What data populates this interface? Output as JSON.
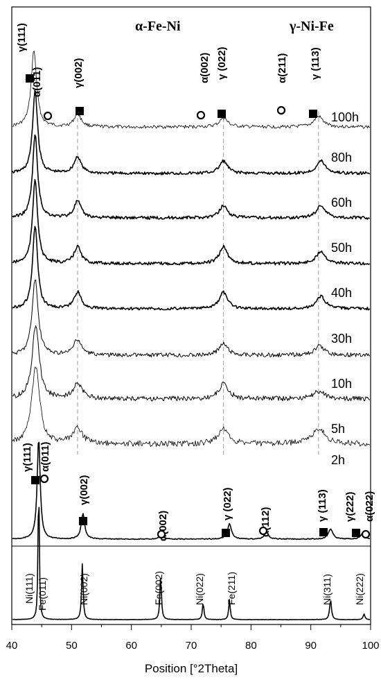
{
  "chart_data": {
    "type": "line",
    "xlabel": "Position [°2Theta]",
    "xlim": [
      40,
      100
    ],
    "xticks": [
      40,
      50,
      60,
      70,
      80,
      90,
      100
    ],
    "legend": [
      "α-Fe-Ni",
      "γ-Ni-Fe"
    ],
    "legend_markers": [
      "circle",
      "square"
    ],
    "series": [
      {
        "name": "100h",
        "peaks": [
          {
            "x": 43.7,
            "h": 1.0,
            "w": 0.55
          },
          {
            "x": 51.0,
            "h": 0.17,
            "w": 0.7
          },
          {
            "x": 75.4,
            "h": 0.12,
            "w": 0.8
          },
          {
            "x": 91.3,
            "h": 0.14,
            "w": 0.9
          }
        ]
      },
      {
        "name": "80h",
        "peaks": [
          {
            "x": 43.9,
            "h": 1.0,
            "w": 0.5
          },
          {
            "x": 51.0,
            "h": 0.2,
            "w": 0.7
          },
          {
            "x": 75.4,
            "h": 0.15,
            "w": 0.8
          },
          {
            "x": 91.7,
            "h": 0.15,
            "w": 0.9
          }
        ]
      },
      {
        "name": "60h",
        "peaks": [
          {
            "x": 43.9,
            "h": 1.0,
            "w": 0.5
          },
          {
            "x": 51.0,
            "h": 0.2,
            "w": 0.7
          },
          {
            "x": 75.4,
            "h": 0.15,
            "w": 0.8
          },
          {
            "x": 91.7,
            "h": 0.15,
            "w": 0.9
          }
        ]
      },
      {
        "name": "50h",
        "peaks": [
          {
            "x": 43.9,
            "h": 1.0,
            "w": 0.5
          },
          {
            "x": 51.0,
            "h": 0.2,
            "w": 0.7
          },
          {
            "x": 75.4,
            "h": 0.2,
            "w": 0.8
          },
          {
            "x": 91.7,
            "h": 0.15,
            "w": 0.9
          }
        ]
      },
      {
        "name": "40h",
        "peaks": [
          {
            "x": 43.9,
            "h": 1.0,
            "w": 0.5
          },
          {
            "x": 51.0,
            "h": 0.2,
            "w": 0.7
          },
          {
            "x": 75.4,
            "h": 0.2,
            "w": 0.8
          },
          {
            "x": 91.7,
            "h": 0.15,
            "w": 0.9
          }
        ]
      },
      {
        "name": "30h",
        "peaks": [
          {
            "x": 43.9,
            "h": 1.0,
            "w": 0.6
          },
          {
            "x": 51.0,
            "h": 0.2,
            "w": 0.8
          },
          {
            "x": 75.4,
            "h": 0.15,
            "w": 0.9
          },
          {
            "x": 91.5,
            "h": 0.12,
            "w": 1.0
          }
        ]
      },
      {
        "name": "10h",
        "peaks": [
          {
            "x": 44.0,
            "h": 1.0,
            "w": 0.7
          },
          {
            "x": 51.0,
            "h": 0.2,
            "w": 0.9
          },
          {
            "x": 75.4,
            "h": 0.2,
            "w": 1.0
          },
          {
            "x": 91.3,
            "h": 0.1,
            "w": 1.2
          }
        ]
      },
      {
        "name": "5h",
        "peaks": [
          {
            "x": 44.0,
            "h": 1.0,
            "w": 0.8
          },
          {
            "x": 51.0,
            "h": 0.2,
            "w": 1.0
          },
          {
            "x": 75.4,
            "h": 0.2,
            "w": 1.1
          },
          {
            "x": 91.3,
            "h": 0.2,
            "w": 1.4
          }
        ]
      },
      {
        "name": "2h",
        "peaks": [
          {
            "x": 44.5,
            "h": 1.0,
            "w": 0.3
          },
          {
            "x": 51.9,
            "h": 0.25,
            "w": 0.35
          },
          {
            "x": 65.0,
            "h": 0.04,
            "w": 0.4
          },
          {
            "x": 76.4,
            "h": 0.15,
            "w": 0.4
          },
          {
            "x": 82.6,
            "h": 0.07,
            "w": 0.4
          },
          {
            "x": 93.3,
            "h": 0.1,
            "w": 0.45
          },
          {
            "x": 98.6,
            "h": 0.05,
            "w": 0.45
          }
        ]
      },
      {
        "name": "",
        "peaks": [
          {
            "x": 44.5,
            "h": 1.0,
            "w": 0.12
          },
          {
            "x": 51.8,
            "h": 0.39,
            "w": 0.15
          },
          {
            "x": 64.9,
            "h": 0.31,
            "w": 0.15
          },
          {
            "x": 72.0,
            "h": 0.12,
            "w": 0.15
          },
          {
            "x": 76.4,
            "h": 0.14,
            "w": 0.15
          },
          {
            "x": 93.3,
            "h": 0.14,
            "w": 0.18
          },
          {
            "x": 98.9,
            "h": 0.04,
            "w": 0.18
          }
        ]
      }
    ],
    "reference_lines_x": [
      51.0,
      75.4,
      91.3
    ],
    "top_annotations": [
      {
        "text": "γ(111)",
        "x": 43.2,
        "marker": "square"
      },
      {
        "text": "α(011)",
        "x": 46.3,
        "marker": "circle"
      },
      {
        "text": "γ(002)",
        "x": 51.3,
        "marker": "square"
      },
      {
        "text": "α(002)",
        "x": 69.0,
        "marker": "circle"
      },
      {
        "text": "γ (022)",
        "x": 75.8,
        "marker": "square"
      },
      {
        "text": "α(211)",
        "x": 86.0,
        "marker": "circle"
      },
      {
        "text": "γ (113)",
        "x": 92.0,
        "marker": "square"
      }
    ],
    "bottom_annotations": [
      {
        "text": "γ(111)",
        "x": 43.6,
        "marker": "square"
      },
      {
        "text": "α(011)",
        "x": 45.9,
        "marker": "circle"
      },
      {
        "text": "γ(002)",
        "x": 52.4,
        "marker": "square"
      },
      {
        "text": "α(002)",
        "x": 66.0,
        "marker": "circle"
      },
      {
        "text": "γ (022)",
        "x": 75.8,
        "marker": "square"
      },
      {
        "text": "α(112)",
        "x": 82.8,
        "marker": "circle"
      },
      {
        "text": "γ (113)",
        "x": 92.8,
        "marker": "square"
      },
      {
        "text": "γ(222)",
        "x": 97.8,
        "marker": "square"
      },
      {
        "text": "α(022)",
        "x": 100.0,
        "marker": "circle"
      }
    ],
    "reference_labels": [
      {
        "text": "Ni(111)",
        "x": 42.7
      },
      {
        "text": "Fe(011)",
        "x": 45.5
      },
      {
        "text": "Ni(002)",
        "x": 51.0
      },
      {
        "text": "Fe(002)",
        "x": 63.7
      },
      {
        "text": "Ni(022)",
        "x": 71.3
      },
      {
        "text": "Fe(211)",
        "x": 75.9
      },
      {
        "text": "Ni(311)",
        "x": 92.7
      },
      {
        "text": "Ni(222)",
        "x": 98.4
      }
    ]
  }
}
